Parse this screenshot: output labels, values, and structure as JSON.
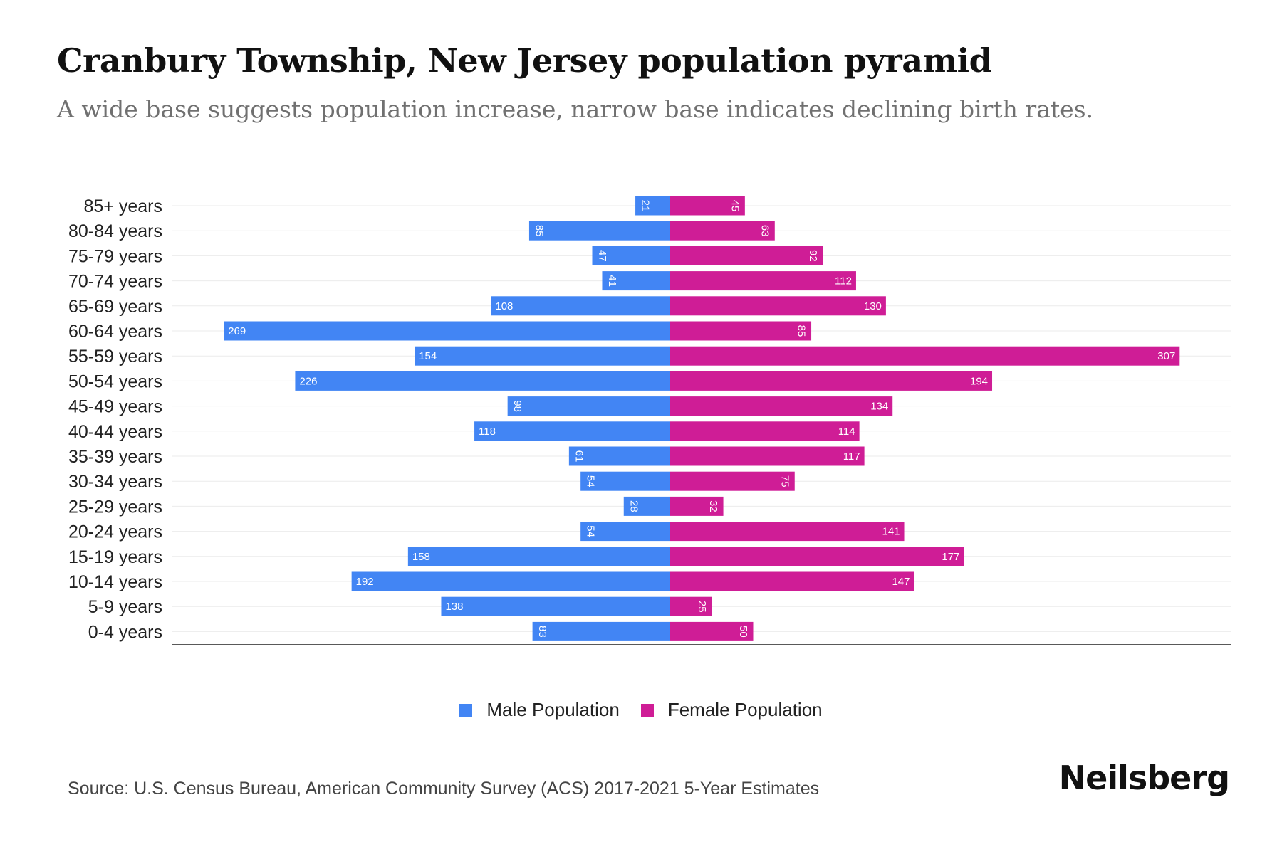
{
  "header": {
    "title": "Cranbury Township, New Jersey population pyramid",
    "subtitle": "A wide base suggests population increase, narrow base indicates declining birth rates."
  },
  "chart_data": {
    "type": "bar",
    "orientation": "horizontal",
    "categories": [
      "85+ years",
      "80-84 years",
      "75-79 years",
      "70-74 years",
      "65-69 years",
      "60-64 years",
      "55-59 years",
      "50-54 years",
      "45-49 years",
      "40-44 years",
      "35-39 years",
      "30-34 years",
      "25-29 years",
      "20-24 years",
      "15-19 years",
      "10-14 years",
      "5-9 years",
      "0-4 years"
    ],
    "series": [
      {
        "name": "Male Population",
        "color": "#4285F4",
        "values": [
          21,
          85,
          47,
          41,
          108,
          269,
          154,
          226,
          98,
          118,
          61,
          54,
          28,
          54,
          158,
          192,
          138,
          83
        ]
      },
      {
        "name": "Female Population",
        "color": "#CF1D96",
        "values": [
          45,
          63,
          92,
          112,
          130,
          85,
          307,
          194,
          134,
          114,
          117,
          75,
          32,
          141,
          177,
          147,
          25,
          50
        ]
      }
    ],
    "grid": true,
    "legend_position": "bottom-center"
  },
  "legend": {
    "male_label": "Male Population",
    "female_label": "Female Population",
    "male_color": "#4285F4",
    "female_color": "#CF1D96"
  },
  "footer": {
    "source": "Source: U.S. Census Bureau, American Community Survey (ACS) 2017-2021 5-Year Estimates",
    "brand": "Neilsberg"
  }
}
